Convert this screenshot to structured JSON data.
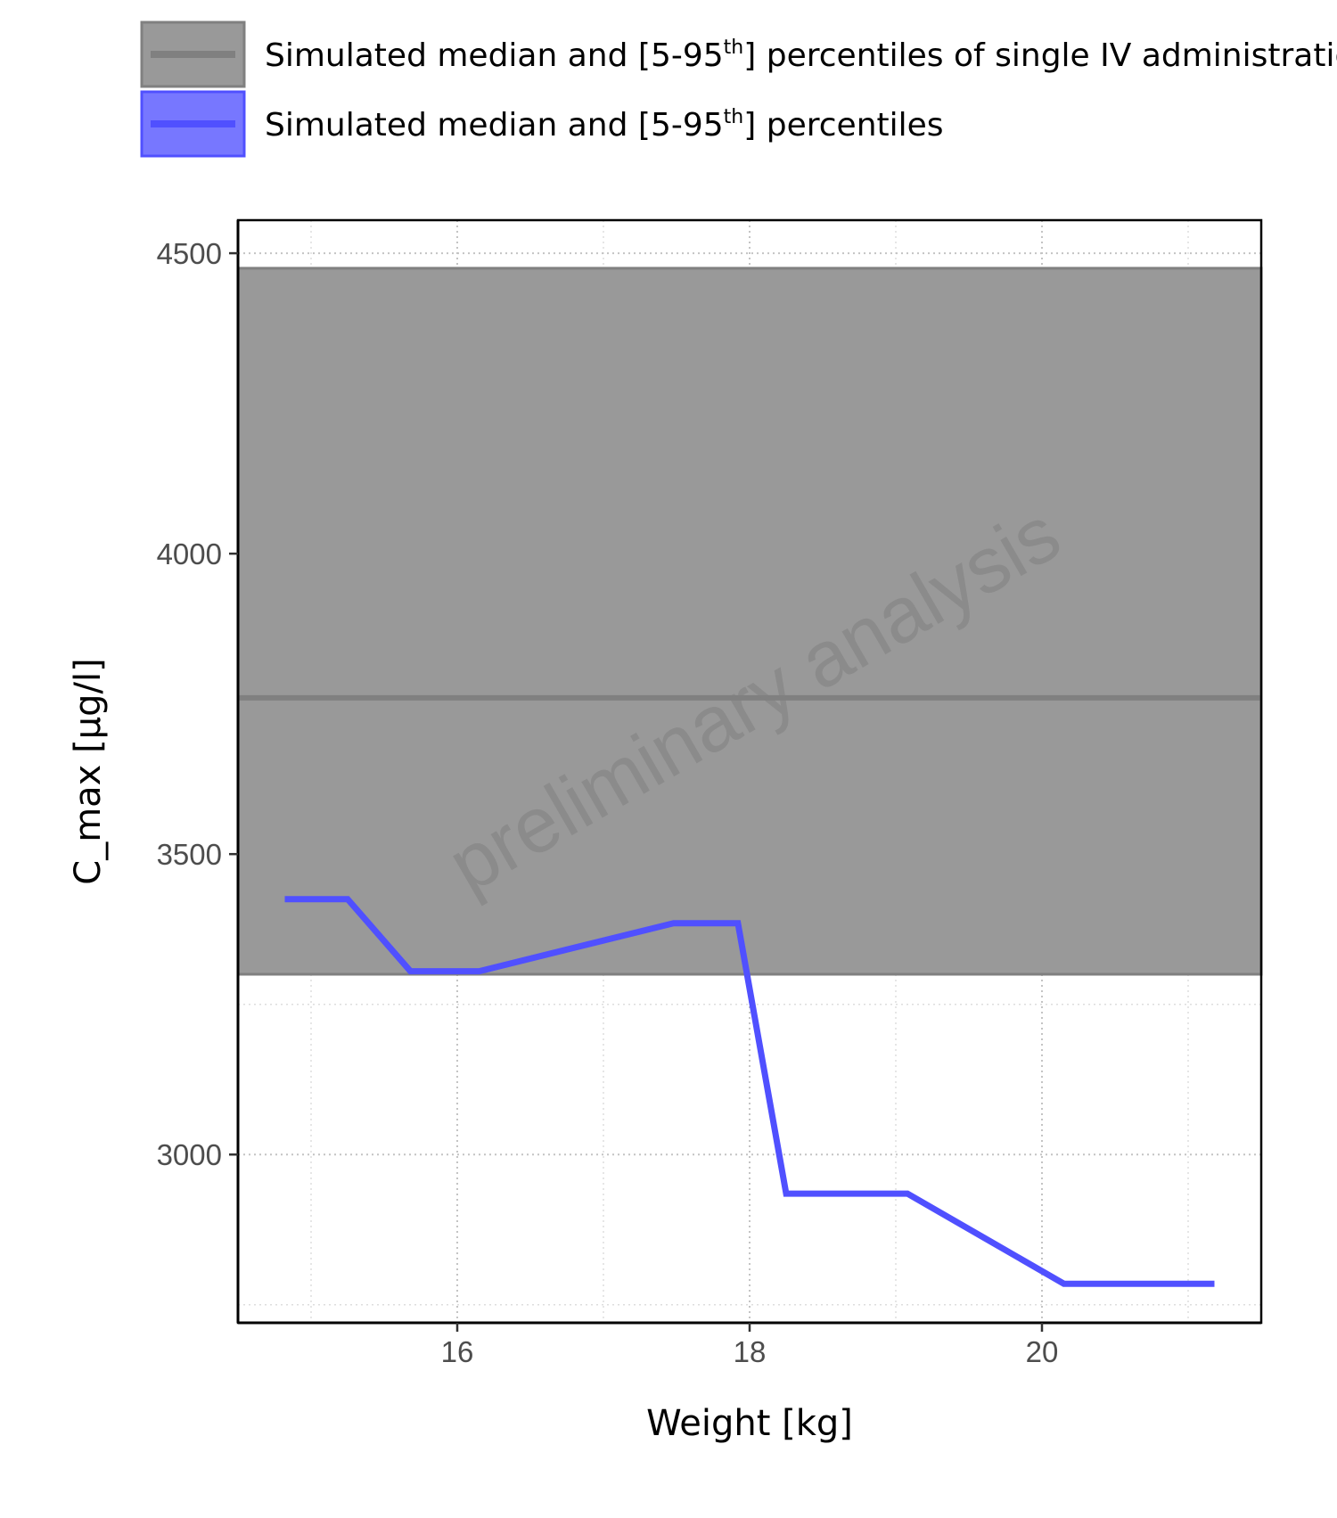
{
  "chart_data": {
    "type": "line",
    "xlabel": "Weight [kg]",
    "ylabel": "C_max [µg/l]",
    "xlim": [
      14.5,
      21.5
    ],
    "ylim": [
      2720,
      4555
    ],
    "x_ticks": [
      16,
      18,
      20
    ],
    "y_ticks": [
      3000,
      3500,
      4000,
      4500
    ],
    "grid": "dotted",
    "legend_position": "top",
    "watermark": "preliminary analysis",
    "reference_band": {
      "legend": {
        "prefix": "Simulated median and [5-95",
        "sup": "th",
        "suffix": "] percentiles of single IV administration"
      },
      "median": 3760,
      "p5": 3300,
      "p95": 4475,
      "color": "#999999",
      "line_color": "#808080"
    },
    "series": [
      {
        "legend": {
          "prefix": "Simulated median and [5-95",
          "sup": "th",
          "suffix": "] percentiles"
        },
        "color": "#5050ff",
        "x": [
          14.82,
          15.25,
          15.68,
          16.15,
          17.48,
          17.92,
          18.25,
          19.08,
          20.15,
          21.18
        ],
        "y": [
          3425,
          3425,
          3305,
          3305,
          3385,
          3385,
          2935,
          2935,
          2785,
          2785
        ]
      }
    ]
  }
}
